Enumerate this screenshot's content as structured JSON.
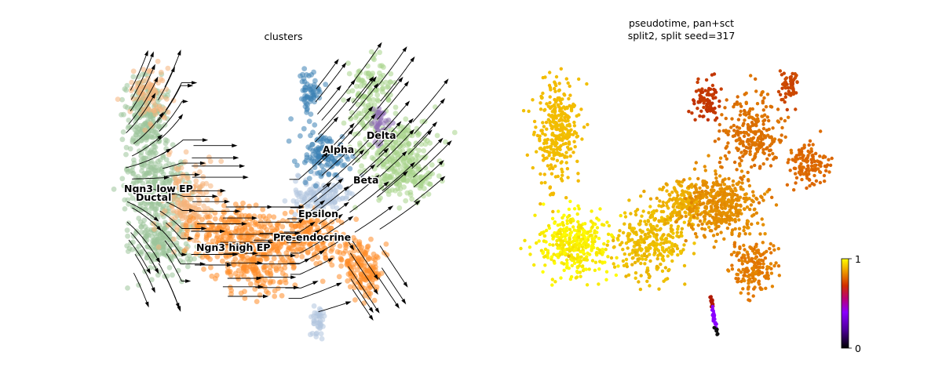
{
  "chart_data": [
    {
      "type": "scatter",
      "title": "clusters",
      "xlabel": "",
      "ylabel": "",
      "grid": false,
      "overlay": "velocity streamlines with arrowheads",
      "clusters": [
        {
          "name": "Ductal",
          "color": "#9cc49a"
        },
        {
          "name": "Ngn3 low EP",
          "color": "#f5b27a"
        },
        {
          "name": "Ngn3 high EP",
          "color": "#ff8c28"
        },
        {
          "name": "Pre-endocrine",
          "color": "#ff8c28"
        },
        {
          "name": "Epsilon",
          "color": "#b0c4de"
        },
        {
          "name": "Alpha",
          "color": "#3c82b4"
        },
        {
          "name": "Beta",
          "color": "#a8d48a"
        },
        {
          "name": "Delta",
          "color": "#8e6cb4"
        }
      ]
    },
    {
      "type": "scatter",
      "title": "pseudotime, pan+sct",
      "subtitle": "split2, split seed=317",
      "xlabel": "",
      "ylabel": "",
      "grid": false,
      "colormap": "gnuplot",
      "colorbar": {
        "min": 0,
        "max": 1,
        "tick_labels": [
          "0",
          "1"
        ]
      }
    }
  ],
  "titles": {
    "left": "clusters",
    "right_line1": "pseudotime, pan+sct",
    "right_line2": "split2, split seed=317"
  },
  "labels": {
    "ngn3_low": "Ngn3 low EP",
    "ductal": "Ductal",
    "ngn3_high": "Ngn3 high EP",
    "pre_endocrine": "Pre-endocrine",
    "epsilon": "Epsilon",
    "alpha": "Alpha",
    "beta": "Beta",
    "delta": "Delta"
  },
  "colorbar_ticks": {
    "min": "0",
    "max": "1"
  }
}
